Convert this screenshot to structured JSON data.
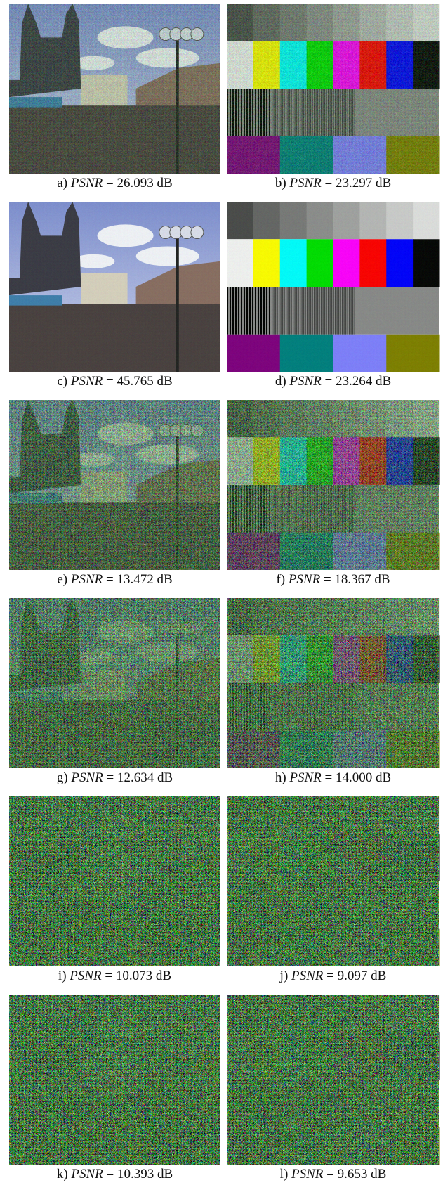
{
  "figure": {
    "panels": [
      {
        "label": "a)",
        "metric": "PSNR",
        "value": "= 26.093 dB"
      },
      {
        "label": "b)",
        "metric": "PSNR",
        "value": "= 23.297 dB"
      },
      {
        "label": "c)",
        "metric": "PSNR",
        "value": "= 45.765 dB"
      },
      {
        "label": "d)",
        "metric": "PSNR",
        "value": "= 23.264 dB"
      },
      {
        "label": "e)",
        "metric": "PSNR",
        "value": "= 13.472 dB"
      },
      {
        "label": "f)",
        "metric": "PSNR",
        "value": "= 18.367 dB"
      },
      {
        "label": "g)",
        "metric": "PSNR",
        "value": "= 12.634 dB"
      },
      {
        "label": "h)",
        "metric": "PSNR",
        "value": "= 14.000 dB"
      },
      {
        "label": "i)",
        "metric": "PSNR",
        "value": "= 10.073 dB"
      },
      {
        "label": "j)",
        "metric": "PSNR",
        "value": "= 9.097 dB"
      },
      {
        "label": "k)",
        "metric": "PSNR",
        "value": "= 10.393 dB"
      },
      {
        "label": "l)",
        "metric": "PSNR",
        "value": "= 9.653 dB"
      }
    ]
  }
}
